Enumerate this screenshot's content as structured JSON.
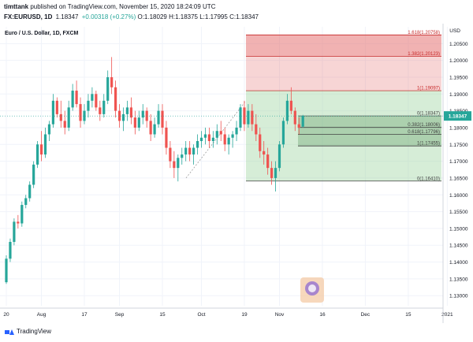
{
  "header": {
    "user": "timttank",
    "published_text": "published on TradingView.com, November 15, 2020 18:24:09 UTC",
    "symbol": "FX:EURUSD, 1D",
    "last": "1.18347",
    "change": "+0.00318 (+0.27%)",
    "o_label": "O:",
    "o_value": "1.18029",
    "h_label": "H:",
    "h_value": "1.18375",
    "l_label": "L:",
    "l_value": "1.17995",
    "c_label": "C:",
    "c_value": "1.18347"
  },
  "chart_data": {
    "type": "candlestick",
    "title": "Euro / U.S. Dollar, 1D, FXCM",
    "currency_label": "USD",
    "ylim": [
      1.127,
      1.21
    ],
    "yticks": [
      "1.20500",
      "1.20000",
      "1.19500",
      "1.19000",
      "1.18500",
      "1.18000",
      "1.17500",
      "1.17000",
      "1.16500",
      "1.16000",
      "1.15500",
      "1.15000",
      "1.14500",
      "1.14000",
      "1.13500",
      "1.13000"
    ],
    "yticks_num": [
      1.205,
      1.2,
      1.195,
      1.19,
      1.185,
      1.18,
      1.175,
      1.17,
      1.165,
      1.16,
      1.155,
      1.15,
      1.145,
      1.14,
      1.135,
      1.13
    ],
    "xticks": [
      "20",
      "Aug",
      "17",
      "Sep",
      "15",
      "Oct",
      "19",
      "Nov",
      "16",
      "Dec",
      "15",
      "2021"
    ],
    "xtick_bars": [
      0,
      9,
      20,
      29,
      40,
      50,
      61,
      70,
      81,
      92,
      103,
      113
    ],
    "current_price": "1.18347",
    "current_price_num": 1.18347,
    "ohlc": [
      [
        1.134,
        1.142,
        1.1335,
        1.141
      ],
      [
        1.141,
        1.147,
        1.14,
        1.146
      ],
      [
        1.146,
        1.153,
        1.145,
        1.152
      ],
      [
        1.152,
        1.154,
        1.15,
        1.1515
      ],
      [
        1.1515,
        1.158,
        1.1505,
        1.157
      ],
      [
        1.157,
        1.16,
        1.156,
        1.159
      ],
      [
        1.159,
        1.164,
        1.158,
        1.163
      ],
      [
        1.163,
        1.17,
        1.162,
        1.169
      ],
      [
        1.169,
        1.176,
        1.168,
        1.175
      ],
      [
        1.175,
        1.179,
        1.17,
        1.172
      ],
      [
        1.172,
        1.18,
        1.171,
        1.178
      ],
      [
        1.178,
        1.182,
        1.176,
        1.181
      ],
      [
        1.181,
        1.19,
        1.18,
        1.188
      ],
      [
        1.188,
        1.189,
        1.183,
        1.184
      ],
      [
        1.184,
        1.188,
        1.18,
        1.182
      ],
      [
        1.182,
        1.185,
        1.178,
        1.18
      ],
      [
        1.18,
        1.188,
        1.179,
        1.186
      ],
      [
        1.186,
        1.193,
        1.185,
        1.191
      ],
      [
        1.191,
        1.194,
        1.186,
        1.187
      ],
      [
        1.187,
        1.189,
        1.18,
        1.182
      ],
      [
        1.182,
        1.187,
        1.181,
        1.185
      ],
      [
        1.185,
        1.19,
        1.183,
        1.188
      ],
      [
        1.188,
        1.192,
        1.186,
        1.19
      ],
      [
        1.19,
        1.191,
        1.185,
        1.186
      ],
      [
        1.186,
        1.188,
        1.182,
        1.184
      ],
      [
        1.184,
        1.19,
        1.183,
        1.188
      ],
      [
        1.188,
        1.197,
        1.187,
        1.195
      ],
      [
        1.195,
        1.201,
        1.19,
        1.192
      ],
      [
        1.192,
        1.194,
        1.183,
        1.185
      ],
      [
        1.185,
        1.187,
        1.18,
        1.182
      ],
      [
        1.182,
        1.186,
        1.179,
        1.184
      ],
      [
        1.184,
        1.188,
        1.182,
        1.186
      ],
      [
        1.186,
        1.189,
        1.181,
        1.183
      ],
      [
        1.183,
        1.185,
        1.178,
        1.18
      ],
      [
        1.18,
        1.185,
        1.179,
        1.183
      ],
      [
        1.183,
        1.187,
        1.181,
        1.185
      ],
      [
        1.185,
        1.186,
        1.18,
        1.182
      ],
      [
        1.182,
        1.184,
        1.176,
        1.178
      ],
      [
        1.178,
        1.183,
        1.177,
        1.181
      ],
      [
        1.181,
        1.187,
        1.18,
        1.185
      ],
      [
        1.185,
        1.187,
        1.178,
        1.18
      ],
      [
        1.18,
        1.182,
        1.172,
        1.174
      ],
      [
        1.174,
        1.176,
        1.168,
        1.17
      ],
      [
        1.17,
        1.173,
        1.165,
        1.168
      ],
      [
        1.168,
        1.172,
        1.164,
        1.171
      ],
      [
        1.171,
        1.174,
        1.169,
        1.172
      ],
      [
        1.172,
        1.176,
        1.17,
        1.174
      ],
      [
        1.174,
        1.176,
        1.17,
        1.172
      ],
      [
        1.172,
        1.175,
        1.169,
        1.174
      ],
      [
        1.174,
        1.178,
        1.172,
        1.176
      ],
      [
        1.176,
        1.179,
        1.174,
        1.177
      ],
      [
        1.177,
        1.18,
        1.175,
        1.178
      ],
      [
        1.178,
        1.18,
        1.174,
        1.176
      ],
      [
        1.176,
        1.179,
        1.174,
        1.177
      ],
      [
        1.177,
        1.181,
        1.175,
        1.179
      ],
      [
        1.179,
        1.182,
        1.176,
        1.178
      ],
      [
        1.178,
        1.18,
        1.173,
        1.175
      ],
      [
        1.175,
        1.178,
        1.172,
        1.177
      ],
      [
        1.177,
        1.179,
        1.174,
        1.178
      ],
      [
        1.178,
        1.182,
        1.176,
        1.18
      ],
      [
        1.18,
        1.187,
        1.179,
        1.186
      ],
      [
        1.186,
        1.188,
        1.179,
        1.181
      ],
      [
        1.181,
        1.187,
        1.18,
        1.185
      ],
      [
        1.185,
        1.187,
        1.179,
        1.181
      ],
      [
        1.181,
        1.184,
        1.176,
        1.178
      ],
      [
        1.178,
        1.18,
        1.171,
        1.173
      ],
      [
        1.173,
        1.176,
        1.169,
        1.172
      ],
      [
        1.172,
        1.174,
        1.166,
        1.168
      ],
      [
        1.168,
        1.17,
        1.163,
        1.165
      ],
      [
        1.165,
        1.17,
        1.161,
        1.168
      ],
      [
        1.168,
        1.176,
        1.167,
        1.175
      ],
      [
        1.175,
        1.183,
        1.174,
        1.182
      ],
      [
        1.182,
        1.19,
        1.181,
        1.188
      ],
      [
        1.188,
        1.192,
        1.184,
        1.185
      ],
      [
        1.185,
        1.186,
        1.179,
        1.181
      ],
      [
        1.181,
        1.183,
        1.178,
        1.18
      ],
      [
        1.1803,
        1.1838,
        1.18,
        1.1835
      ]
    ]
  },
  "fib_top": {
    "levels": [
      {
        "label": "1.618(1.20758)",
        "price": 1.20758
      },
      {
        "label": "1.382(1.20123)",
        "price": 1.20123
      },
      {
        "label": "1(1.19097)",
        "price": 1.19097
      }
    ]
  },
  "fib_bottom": {
    "levels": [
      {
        "label": "0(1.18347)",
        "price": 1.18347
      },
      {
        "label": "0.382(1.18006)",
        "price": 1.18006
      },
      {
        "label": "0.618(1.17796)",
        "price": 1.17796
      },
      {
        "label": "1(1.17455)",
        "price": 1.17455
      },
      {
        "label": "0(1.16410)",
        "price": 1.1641
      }
    ]
  },
  "colors": {
    "up": "#26a69a",
    "down": "#ef5350",
    "fib_red": "#e57373",
    "fib_green": "#a5d6a7",
    "price_tag": "#26a69a"
  },
  "footer": {
    "brand": "TradingView"
  },
  "badge": {
    "icon": "watermark-badge-icon"
  }
}
